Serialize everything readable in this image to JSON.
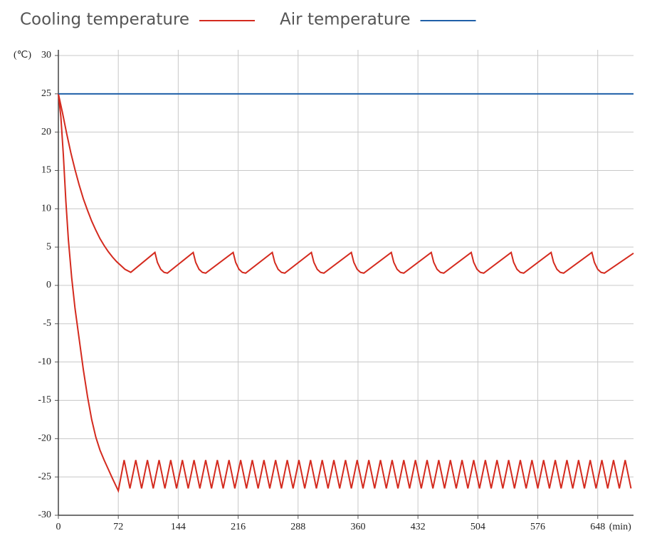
{
  "chart_data": {
    "type": "line",
    "xlim": [
      0,
      691
    ],
    "ylim": [
      -30,
      30
    ],
    "xticks": [
      0,
      72,
      144,
      216,
      288,
      360,
      432,
      504,
      576,
      648
    ],
    "yticks": [
      -30,
      -25,
      -20,
      -15,
      -10,
      -5,
      0,
      5,
      10,
      15,
      20,
      25,
      30
    ],
    "x_unit": "(min)",
    "y_unit": "(℃)",
    "grid": true,
    "series": [
      {
        "name": "Cooling temperature",
        "color": "#d42a1e",
        "x": [
          0,
          5,
          10,
          15,
          20,
          25,
          30,
          35,
          40,
          45,
          50,
          55,
          60,
          65,
          70,
          75,
          80,
          87,
          116,
          119,
          123,
          127,
          131,
          162,
          165,
          169,
          173,
          177,
          210,
          213,
          217,
          221,
          225,
          257,
          260,
          264,
          268,
          272,
          304,
          307,
          311,
          315,
          319,
          352,
          355,
          359,
          363,
          367,
          400,
          403,
          407,
          411,
          415,
          448,
          451,
          455,
          459,
          463,
          496,
          499,
          503,
          507,
          511,
          544,
          547,
          551,
          555,
          559,
          592,
          595,
          599,
          603,
          607,
          641,
          644,
          648,
          652,
          656,
          691
        ],
        "values": [
          25,
          22.5,
          19.8,
          17.3,
          15.1,
          13.1,
          11.3,
          9.8,
          8.4,
          7.2,
          6.1,
          5.2,
          4.4,
          3.7,
          3.1,
          2.6,
          2.1,
          1.7,
          4.3,
          3.0,
          2.1,
          1.7,
          1.6,
          4.3,
          3.0,
          2.1,
          1.7,
          1.6,
          4.3,
          3.0,
          2.1,
          1.7,
          1.6,
          4.3,
          3.0,
          2.1,
          1.7,
          1.6,
          4.3,
          3.0,
          2.1,
          1.7,
          1.6,
          4.3,
          3.0,
          2.1,
          1.7,
          1.6,
          4.3,
          3.0,
          2.1,
          1.7,
          1.6,
          4.3,
          3.0,
          2.1,
          1.7,
          1.6,
          4.3,
          3.0,
          2.1,
          1.7,
          1.6,
          4.3,
          3.0,
          2.1,
          1.7,
          1.6,
          4.3,
          3.0,
          2.1,
          1.7,
          1.6,
          4.3,
          3.0,
          2.1,
          1.7,
          1.6,
          4.2
        ]
      },
      {
        "color": "#d42a1e",
        "x": [
          0,
          3,
          6,
          9,
          12,
          16,
          20,
          25,
          30,
          35,
          40,
          45,
          50,
          55,
          60,
          65,
          72,
          79,
          86,
          93,
          100,
          107,
          114,
          121,
          128,
          135,
          142,
          149,
          156,
          163,
          170,
          177,
          184,
          191,
          198,
          205,
          212,
          219,
          226,
          233,
          240,
          247,
          254,
          261,
          268,
          275,
          282,
          289,
          296,
          303,
          310,
          317,
          324,
          331,
          338,
          345,
          352,
          359,
          366,
          373,
          380,
          387,
          394,
          401,
          408,
          415,
          422,
          429,
          436,
          443,
          450,
          457,
          464,
          471,
          478,
          485,
          492,
          499,
          506,
          513,
          520,
          527,
          534,
          541,
          548,
          555,
          562,
          569,
          576,
          583,
          590,
          597,
          604,
          611,
          618,
          625,
          632,
          639,
          646,
          653,
          660,
          667,
          674,
          681,
          688
        ],
        "values": [
          25,
          22,
          17,
          11,
          6,
          1,
          -3,
          -7,
          -11,
          -14.5,
          -17.5,
          -19.8,
          -21.5,
          -22.8,
          -24,
          -25.2,
          -26.8,
          -22.8,
          -26.5,
          -22.8,
          -26.5,
          -22.8,
          -26.5,
          -22.8,
          -26.5,
          -22.8,
          -26.5,
          -22.8,
          -26.5,
          -22.8,
          -26.5,
          -22.8,
          -26.5,
          -22.8,
          -26.5,
          -22.8,
          -26.5,
          -22.8,
          -26.5,
          -22.8,
          -26.5,
          -22.8,
          -26.5,
          -22.8,
          -26.5,
          -22.8,
          -26.5,
          -22.8,
          -26.5,
          -22.8,
          -26.5,
          -22.8,
          -26.5,
          -22.8,
          -26.5,
          -22.8,
          -26.5,
          -22.8,
          -26.5,
          -22.8,
          -26.5,
          -22.8,
          -26.5,
          -22.8,
          -26.5,
          -22.8,
          -26.5,
          -22.8,
          -26.5,
          -22.8,
          -26.5,
          -22.8,
          -26.5,
          -22.8,
          -26.5,
          -22.8,
          -26.5,
          -22.8,
          -26.5,
          -22.8,
          -26.5,
          -22.8,
          -26.5,
          -22.8,
          -26.5,
          -22.8,
          -26.5,
          -22.8,
          -26.5,
          -22.8,
          -26.5,
          -22.8,
          -26.5,
          -22.8,
          -26.5,
          -22.8,
          -26.5,
          -22.8,
          -26.5,
          -22.8,
          -26.5,
          -22.8,
          -26.5,
          -22.8,
          -26.5
        ]
      },
      {
        "name": "Air temperature",
        "color": "#1f5fa8",
        "x": [
          0,
          691
        ],
        "values": [
          25,
          25
        ]
      }
    ]
  }
}
